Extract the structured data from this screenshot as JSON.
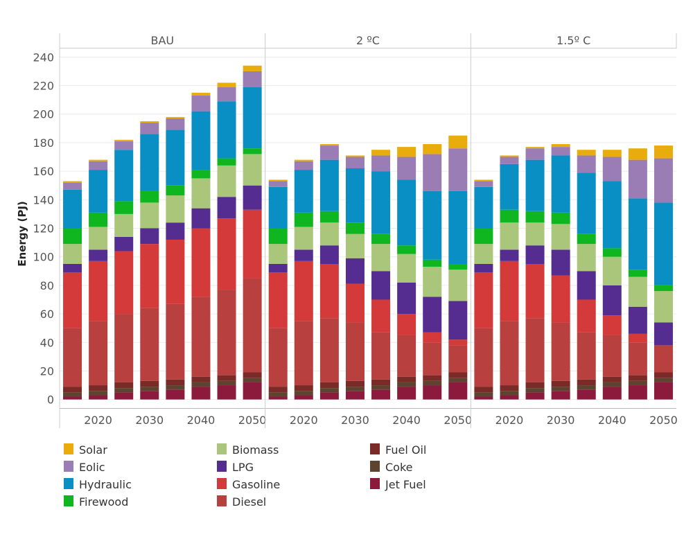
{
  "chart_data": {
    "type": "bar",
    "stacked": true,
    "ylabel": "Energy (PJ)",
    "ylim": [
      -6,
      246
    ],
    "y_ticks": [
      0,
      20,
      40,
      60,
      80,
      100,
      120,
      140,
      160,
      180,
      200,
      220,
      240
    ],
    "x_categories": [
      2015,
      2020,
      2025,
      2030,
      2035,
      2040,
      2045,
      2050
    ],
    "x_tick_labels": [
      "",
      "2020",
      "",
      "2030",
      "",
      "2040",
      "",
      "2050"
    ],
    "legend_placement": "bottom-left",
    "series": [
      {
        "name": "Jet Fuel",
        "color": "#8b1a3c"
      },
      {
        "name": "Coke",
        "color": "#5c4430"
      },
      {
        "name": "Fuel Oil",
        "color": "#7a2b28"
      },
      {
        "name": "Diesel",
        "color": "#b8403f"
      },
      {
        "name": "Gasoline",
        "color": "#d43a3a"
      },
      {
        "name": "LPG",
        "color": "#552d91"
      },
      {
        "name": "Biomass",
        "color": "#a9c67a"
      },
      {
        "name": "Firewood",
        "color": "#10b620"
      },
      {
        "name": "Hydraulic",
        "color": "#0a8fc4"
      },
      {
        "name": "Eolic",
        "color": "#9b7db5"
      },
      {
        "name": "Solar",
        "color": "#e8ac0d"
      }
    ],
    "legend_columns": [
      [
        "Solar",
        "Eolic",
        "Hydraulic",
        "Firewood"
      ],
      [
        "Biomass",
        "LPG",
        "Gasoline",
        "Diesel"
      ],
      [
        "Fuel Oil",
        "Coke",
        "Jet Fuel"
      ]
    ],
    "panels": [
      {
        "title": "BAU",
        "stacks": {
          "Jet Fuel": [
            2,
            3,
            5,
            6,
            7,
            9,
            10,
            12
          ],
          "Coke": [
            3,
            3,
            3,
            3,
            3,
            3,
            3,
            3
          ],
          "Fuel Oil": [
            4,
            4,
            4,
            4,
            4,
            4,
            4,
            4
          ],
          "Diesel": [
            41,
            45,
            48,
            51,
            53,
            56,
            60,
            66
          ],
          "Gasoline": [
            39,
            42,
            44,
            45,
            45,
            48,
            50,
            48
          ],
          "LPG": [
            6,
            8,
            10,
            11,
            12,
            14,
            15,
            17
          ],
          "Biomass": [
            14,
            16,
            16,
            18,
            19,
            21,
            22,
            22
          ],
          "Firewood": [
            11,
            10,
            9,
            8,
            7,
            6,
            5,
            4
          ],
          "Hydraulic": [
            27,
            30,
            36,
            40,
            39,
            41,
            40,
            43
          ],
          "Eolic": [
            5,
            6,
            6,
            8,
            8,
            11,
            10,
            11
          ],
          "Solar": [
            1,
            1,
            1,
            1,
            1,
            2,
            3,
            4
          ]
        }
      },
      {
        "title": "2 ºC",
        "stacks": {
          "Jet Fuel": [
            2,
            3,
            5,
            6,
            7,
            9,
            10,
            12
          ],
          "Coke": [
            3,
            3,
            3,
            3,
            3,
            3,
            3,
            3
          ],
          "Fuel Oil": [
            4,
            4,
            4,
            4,
            4,
            4,
            4,
            4
          ],
          "Diesel": [
            41,
            45,
            45,
            41,
            33,
            29,
            23,
            19
          ],
          "Gasoline": [
            39,
            42,
            38,
            27,
            23,
            15,
            7,
            4
          ],
          "LPG": [
            6,
            8,
            13,
            18,
            20,
            22,
            25,
            27
          ],
          "Biomass": [
            14,
            16,
            16,
            17,
            19,
            20,
            21,
            22
          ],
          "Firewood": [
            11,
            10,
            8,
            8,
            7,
            6,
            5,
            4
          ],
          "Hydraulic": [
            29,
            30,
            36,
            38,
            44,
            46,
            48,
            51
          ],
          "Eolic": [
            4,
            6,
            10,
            8,
            11,
            16,
            26,
            30
          ],
          "Solar": [
            1,
            1,
            1,
            1,
            4,
            7,
            7,
            9
          ]
        }
      },
      {
        "title": "1.5º C",
        "stacks": {
          "Jet Fuel": [
            2,
            3,
            5,
            6,
            7,
            9,
            10,
            12
          ],
          "Coke": [
            3,
            3,
            3,
            3,
            3,
            3,
            3,
            3
          ],
          "Fuel Oil": [
            4,
            4,
            4,
            4,
            4,
            4,
            4,
            4
          ],
          "Diesel": [
            41,
            45,
            45,
            41,
            33,
            29,
            23,
            19
          ],
          "Gasoline": [
            39,
            42,
            38,
            33,
            23,
            14,
            6,
            0
          ],
          "LPG": [
            6,
            8,
            13,
            18,
            20,
            21,
            19,
            16
          ],
          "Biomass": [
            14,
            19,
            16,
            18,
            19,
            20,
            21,
            22
          ],
          "Firewood": [
            11,
            9,
            8,
            8,
            7,
            6,
            5,
            4
          ],
          "Hydraulic": [
            29,
            32,
            36,
            40,
            43,
            47,
            50,
            58
          ],
          "Eolic": [
            4,
            5,
            8,
            6,
            12,
            17,
            27,
            31
          ],
          "Solar": [
            1,
            1,
            1,
            2,
            4,
            5,
            8,
            9
          ]
        }
      }
    ]
  }
}
